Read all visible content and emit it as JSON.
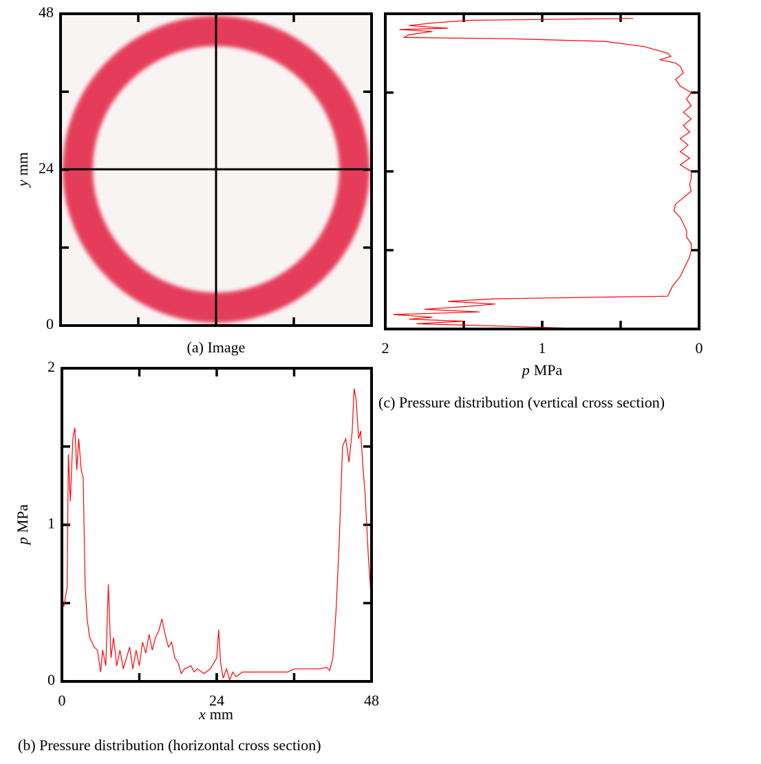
{
  "chart_data": [
    {
      "type": "image",
      "caption": "(a) Image",
      "ylabel": {
        "symbol": "y",
        "unit": "mm"
      },
      "ylim": [
        0,
        48
      ],
      "yticks": [
        0,
        24,
        48
      ]
    },
    {
      "type": "line",
      "caption": "(b) Pressure distribution (horizontal cross section)",
      "xlabel": {
        "symbol": "x",
        "unit": "mm"
      },
      "ylabel": {
        "symbol": "p",
        "unit": "MPa"
      },
      "xlim": [
        0,
        48
      ],
      "xticks": [
        0,
        24,
        48
      ],
      "ylim": [
        0,
        2
      ],
      "yticks": [
        0,
        1,
        2
      ],
      "color": "#ff0000",
      "x": [
        0,
        0.3,
        0.8,
        1,
        1.3,
        1.7,
        2,
        2.3,
        2.6,
        3,
        3.3,
        3.6,
        3.9,
        4.3,
        5,
        5.5,
        6,
        6.3,
        6.8,
        7.2,
        7.6,
        8,
        8.5,
        9,
        9.5,
        10,
        10.5,
        11,
        11.5,
        12,
        12.5,
        13,
        13.5,
        14,
        14.5,
        15,
        15.5,
        16,
        16.5,
        17,
        17.5,
        18,
        18.5,
        19,
        20,
        20.5,
        21,
        22,
        23,
        24,
        24.3,
        24.6,
        25,
        25.5,
        26,
        26.5,
        27,
        28,
        30,
        33,
        35,
        36,
        40,
        41,
        41.5,
        42,
        42.5,
        43,
        43.5,
        44,
        44.5,
        45,
        45.3,
        45.6,
        46,
        46.3,
        46.7,
        47,
        47.5,
        48
      ],
      "values": [
        0.5,
        0.48,
        0.6,
        1.45,
        1.15,
        1.55,
        1.62,
        1.35,
        1.55,
        1.35,
        1.3,
        0.6,
        0.4,
        0.28,
        0.22,
        0.2,
        0.06,
        0.2,
        0.1,
        0.62,
        0.15,
        0.28,
        0.1,
        0.2,
        0.08,
        0.15,
        0.22,
        0.08,
        0.2,
        0.1,
        0.25,
        0.18,
        0.3,
        0.2,
        0.28,
        0.32,
        0.4,
        0.3,
        0.22,
        0.25,
        0.15,
        0.12,
        0.05,
        0.08,
        0.1,
        0.06,
        0.08,
        0.05,
        0.08,
        0.15,
        0.33,
        0.12,
        0.02,
        0.08,
        0.01,
        0.06,
        0.03,
        0.06,
        0.06,
        0.06,
        0.06,
        0.08,
        0.08,
        0.09,
        0.07,
        0.15,
        0.45,
        0.9,
        1.5,
        1.55,
        1.4,
        1.6,
        1.87,
        1.8,
        1.55,
        1.6,
        1.35,
        1.2,
        0.8,
        0.5
      ]
    },
    {
      "type": "vline",
      "caption": "(c) Pressure distribution (vertical cross section)",
      "xlabel": {
        "symbol": "p",
        "unit": "MPa"
      },
      "xlim": [
        2,
        0
      ],
      "xticks": [
        2,
        1,
        0
      ],
      "ylim": [
        0,
        48
      ],
      "color": "#ff0000",
      "y": [
        47.3,
        47,
        46.6,
        46.2,
        45.8,
        45.6,
        45.3,
        44.8,
        44.4,
        44.2,
        43.8,
        43,
        42,
        41.5,
        41,
        40.5,
        40,
        39,
        38,
        37,
        36,
        35,
        34,
        33,
        32,
        31,
        30,
        29,
        28,
        27,
        26,
        25,
        24,
        23,
        22,
        21,
        20,
        19,
        18,
        17,
        16,
        15,
        14,
        13,
        12,
        11,
        10,
        9,
        8,
        6.5,
        5,
        4.6,
        4.2,
        3.8,
        3.4,
        3,
        2.6,
        2.2,
        1.8,
        1.5,
        1.2,
        0.8,
        0.4,
        0
      ],
      "values": [
        0.42,
        1.46,
        1.7,
        1.85,
        1.6,
        1.91,
        1.7,
        1.85,
        1.88,
        1.2,
        0.6,
        0.35,
        0.2,
        0.18,
        0.25,
        0.15,
        0.12,
        0.1,
        0.15,
        0.12,
        0.05,
        0.08,
        0.05,
        0.1,
        0.05,
        0.1,
        0.06,
        0.12,
        0.07,
        0.12,
        0.06,
        0.12,
        0.05,
        0.05,
        0.06,
        0.05,
        0.1,
        0.15,
        0.16,
        0.12,
        0.1,
        0.08,
        0.08,
        0.05,
        0.05,
        0.06,
        0.08,
        0.1,
        0.12,
        0.17,
        0.2,
        1.3,
        1.6,
        1.3,
        1.5,
        1.75,
        1.4,
        1.95,
        1.7,
        1.85,
        1.5,
        1.8,
        1.2,
        0.65
      ]
    }
  ]
}
